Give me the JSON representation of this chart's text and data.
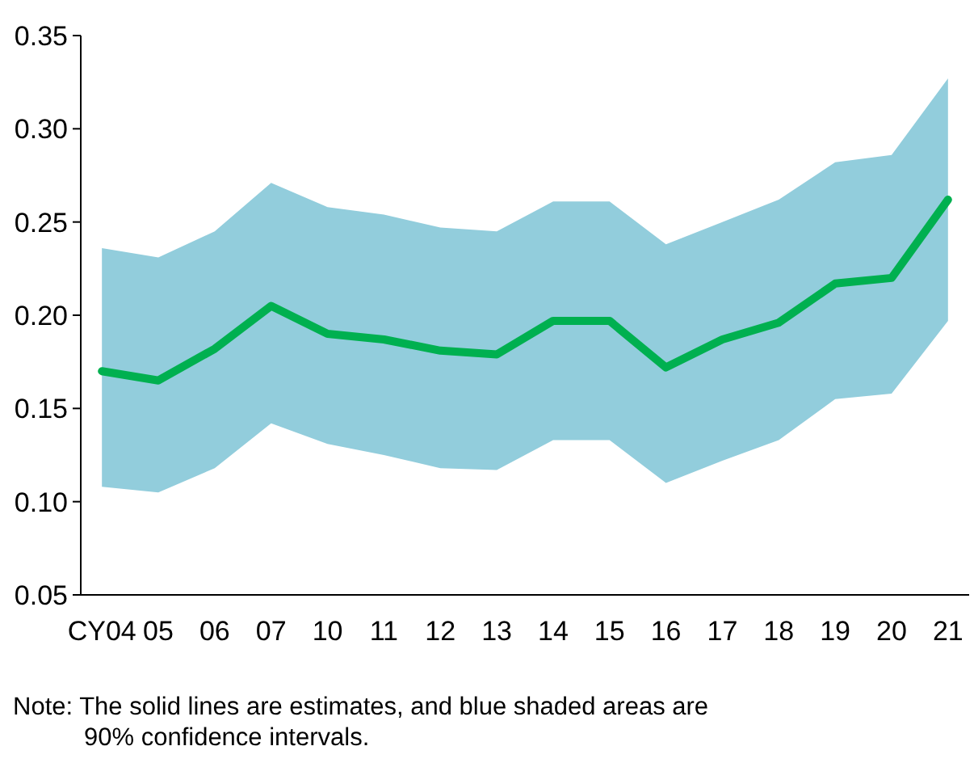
{
  "chart_data": {
    "type": "line",
    "categories": [
      "CY04",
      "05",
      "06",
      "07",
      "10",
      "11",
      "12",
      "13",
      "14",
      "15",
      "16",
      "17",
      "18",
      "19",
      "20",
      "21"
    ],
    "series": [
      {
        "color": "#00b050",
        "values": [
          0.17,
          0.165,
          0.182,
          0.205,
          0.19,
          0.187,
          0.181,
          0.179,
          0.197,
          0.197,
          0.172,
          0.187,
          0.196,
          0.217,
          0.22,
          0.262
        ],
        "lower": [
          0.108,
          0.105,
          0.118,
          0.142,
          0.131,
          0.125,
          0.118,
          0.117,
          0.133,
          0.133,
          0.11,
          0.122,
          0.133,
          0.155,
          0.158,
          0.197
        ],
        "upper": [
          0.236,
          0.231,
          0.245,
          0.271,
          0.258,
          0.254,
          0.247,
          0.245,
          0.261,
          0.261,
          0.238,
          0.25,
          0.262,
          0.282,
          0.286,
          0.327
        ]
      }
    ],
    "ylim": [
      0.05,
      0.35
    ],
    "yticks": [
      {
        "value": 0.05,
        "label": "0.05"
      },
      {
        "value": 0.1,
        "label": "0.10"
      },
      {
        "value": 0.15,
        "label": "0.15"
      },
      {
        "value": 0.2,
        "label": "0.20"
      },
      {
        "value": 0.25,
        "label": "0.25"
      },
      {
        "value": 0.3,
        "label": "0.30"
      },
      {
        "value": 0.35,
        "label": "0.35"
      }
    ],
    "grid": false,
    "marker": "none",
    "line_style": "solid",
    "annotations": [
      "Note: The solid lines are estimates, and blue shaded areas are 90% confidence intervals."
    ]
  }
}
